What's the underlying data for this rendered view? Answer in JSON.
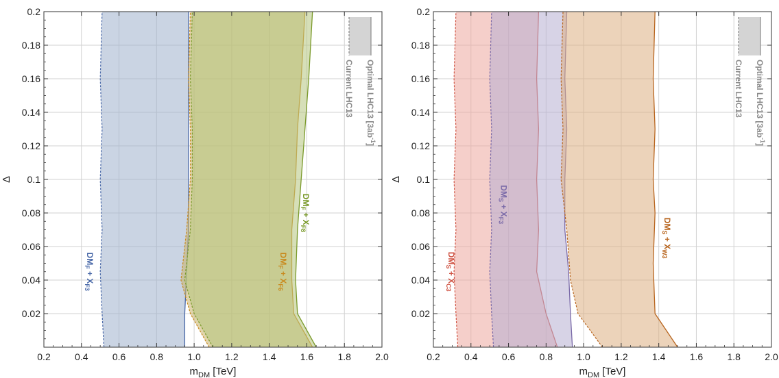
{
  "chart_data": [
    {
      "type": "area",
      "xlabel": "m",
      "xlabel_sub": "DM",
      "xlabel_unit": " [TeV]",
      "ylabel": "Δ",
      "xlim": [
        0.2,
        2.0
      ],
      "ylim": [
        0.0,
        0.2
      ],
      "xticks": [
        0.2,
        0.4,
        0.6,
        0.8,
        1.0,
        1.2,
        1.4,
        1.6,
        1.8,
        2.0
      ],
      "xtick_labels": [
        "0.2",
        "0.4",
        "0.6",
        "0.8",
        "1.0",
        "1.2",
        "1.4",
        "1.6",
        "1.8",
        "2.0"
      ],
      "yticks": [
        0.02,
        0.04,
        0.06,
        0.08,
        0.1,
        0.12,
        0.14,
        0.16,
        0.18,
        0.2
      ],
      "ytick_labels": [
        "0.02",
        "0.04",
        "0.06",
        "0.08",
        "0.1",
        "0.12",
        "0.14",
        "0.16",
        "0.18",
        "0.2"
      ],
      "grid": true,
      "series": [
        {
          "name": "DMF + XF3",
          "label_main": "DM",
          "label_sub1": "F",
          "label_mid": " + X",
          "label_sub2": "F3",
          "label_x": 0.43,
          "label_y": 0.045,
          "color": "#4a69a8",
          "fill": "#9eb0cc",
          "current_reach": [
            [
              0.52,
              0.0
            ],
            [
              0.51,
              0.02
            ],
            [
              0.5,
              0.045
            ],
            [
              0.51,
              0.07
            ],
            [
              0.5,
              0.1
            ],
            [
              0.51,
              0.13
            ],
            [
              0.5,
              0.16
            ],
            [
              0.51,
              0.2
            ]
          ],
          "optimal_reach": [
            [
              0.95,
              0.0
            ],
            [
              0.95,
              0.02
            ],
            [
              0.96,
              0.045
            ],
            [
              0.97,
              0.07
            ],
            [
              0.97,
              0.1
            ],
            [
              0.97,
              0.13
            ],
            [
              0.97,
              0.16
            ],
            [
              0.97,
              0.2
            ]
          ]
        },
        {
          "name": "DMF + XF6",
          "label_main": "DM",
          "label_sub1": "F",
          "label_mid": " + X",
          "label_sub2": "F6",
          "label_x": 1.46,
          "label_y": 0.045,
          "color": "#c98a1e",
          "fill": "#c9b068",
          "current_reach": [
            [
              1.08,
              0.0
            ],
            [
              0.98,
              0.02
            ],
            [
              0.93,
              0.04
            ],
            [
              0.96,
              0.07
            ],
            [
              0.98,
              0.1
            ],
            [
              0.98,
              0.13
            ],
            [
              0.97,
              0.16
            ],
            [
              0.98,
              0.2
            ]
          ],
          "optimal_reach": [
            [
              1.63,
              0.0
            ],
            [
              1.53,
              0.02
            ],
            [
              1.52,
              0.04
            ],
            [
              1.52,
              0.07
            ],
            [
              1.54,
              0.1
            ],
            [
              1.55,
              0.13
            ],
            [
              1.57,
              0.16
            ],
            [
              1.59,
              0.2
            ]
          ]
        },
        {
          "name": "DMF + XF8",
          "label_main": "DM",
          "label_sub1": "F",
          "label_mid": " + X",
          "label_sub2": "F8",
          "label_x": 1.58,
          "label_y": 0.08,
          "color": "#7a9a2a",
          "fill": "#b5c47e",
          "current_reach": [
            [
              1.1,
              0.0
            ],
            [
              1.0,
              0.02
            ],
            [
              0.95,
              0.04
            ],
            [
              0.98,
              0.07
            ],
            [
              0.99,
              0.1
            ],
            [
              0.99,
              0.13
            ],
            [
              0.98,
              0.16
            ],
            [
              0.99,
              0.2
            ]
          ],
          "optimal_reach": [
            [
              1.65,
              0.0
            ],
            [
              1.55,
              0.02
            ],
            [
              1.54,
              0.04
            ],
            [
              1.55,
              0.07
            ],
            [
              1.57,
              0.1
            ],
            [
              1.59,
              0.13
            ],
            [
              1.61,
              0.16
            ],
            [
              1.63,
              0.2
            ]
          ]
        }
      ],
      "legend": {
        "optimal": "Optimal LHC13 [3ab",
        "optimal_sup": "-1",
        "optimal_end": "]",
        "current": "Current LHC13",
        "placement": "top-right",
        "fill": "#d4d4d4",
        "edge": "#8a8a8a"
      }
    },
    {
      "type": "area",
      "xlabel": "m",
      "xlabel_sub": "DM",
      "xlabel_unit": " [TeV]",
      "ylabel": "Δ",
      "xlim": [
        0.2,
        2.0
      ],
      "ylim": [
        0.0,
        0.2
      ],
      "xticks": [
        0.2,
        0.4,
        0.6,
        0.8,
        1.0,
        1.2,
        1.4,
        1.6,
        1.8,
        2.0
      ],
      "xtick_labels": [
        "0.2",
        "0.4",
        "0.6",
        "0.8",
        "1.0",
        "1.2",
        "1.4",
        "1.6",
        "1.8",
        "2.0"
      ],
      "yticks": [
        0.02,
        0.04,
        0.06,
        0.08,
        0.1,
        0.12,
        0.14,
        0.16,
        0.18,
        0.2
      ],
      "ytick_labels": [
        "0.02",
        "0.04",
        "0.06",
        "0.08",
        "0.1",
        "0.12",
        "0.14",
        "0.16",
        "0.18",
        "0.2"
      ],
      "grid": true,
      "series": [
        {
          "name": "DMS + XC3",
          "label_main": "DM",
          "label_sub1": "S",
          "label_mid": " + X",
          "label_sub2": "C3",
          "label_x": 0.28,
          "label_y": 0.045,
          "color": "#d05545",
          "fill": "#eca79e",
          "current_reach": [
            [
              0.33,
              0.0
            ],
            [
              0.32,
              0.02
            ],
            [
              0.31,
              0.045
            ],
            [
              0.32,
              0.07
            ],
            [
              0.31,
              0.1
            ],
            [
              0.32,
              0.13
            ],
            [
              0.31,
              0.16
            ],
            [
              0.32,
              0.2
            ]
          ],
          "optimal_reach": [
            [
              0.86,
              0.0
            ],
            [
              0.8,
              0.02
            ],
            [
              0.75,
              0.045
            ],
            [
              0.76,
              0.07
            ],
            [
              0.75,
              0.1
            ],
            [
              0.76,
              0.13
            ],
            [
              0.75,
              0.16
            ],
            [
              0.76,
              0.2
            ]
          ]
        },
        {
          "name": "DMS + XF3",
          "label_main": "DM",
          "label_sub1": "S",
          "label_mid": " + X",
          "label_sub2": "F3",
          "label_x": 0.56,
          "label_y": 0.085,
          "color": "#7a6aa8",
          "fill": "#b7aed2",
          "current_reach": [
            [
              0.52,
              0.0
            ],
            [
              0.51,
              0.02
            ],
            [
              0.5,
              0.045
            ],
            [
              0.51,
              0.07
            ],
            [
              0.5,
              0.1
            ],
            [
              0.51,
              0.13
            ],
            [
              0.5,
              0.16
            ],
            [
              0.51,
              0.2
            ]
          ],
          "optimal_reach": [
            [
              0.94,
              0.0
            ],
            [
              0.93,
              0.02
            ],
            [
              0.92,
              0.045
            ],
            [
              0.9,
              0.07
            ],
            [
              0.9,
              0.1
            ],
            [
              0.91,
              0.13
            ],
            [
              0.9,
              0.16
            ],
            [
              0.91,
              0.2
            ]
          ]
        },
        {
          "name": "DMS + XW3",
          "label_main": "DM",
          "label_sub1": "S",
          "label_mid": " + X",
          "label_sub2": "W3",
          "label_x": 1.43,
          "label_y": 0.065,
          "color": "#b8651e",
          "fill": "#dcaf82",
          "current_reach": [
            [
              1.1,
              0.0
            ],
            [
              0.97,
              0.02
            ],
            [
              0.93,
              0.04
            ],
            [
              0.91,
              0.07
            ],
            [
              0.88,
              0.1
            ],
            [
              0.89,
              0.13
            ],
            [
              0.88,
              0.16
            ],
            [
              0.89,
              0.2
            ]
          ],
          "optimal_reach": [
            [
              1.5,
              0.0
            ],
            [
              1.38,
              0.02
            ],
            [
              1.37,
              0.05
            ],
            [
              1.38,
              0.08
            ],
            [
              1.37,
              0.1
            ],
            [
              1.38,
              0.13
            ],
            [
              1.37,
              0.16
            ],
            [
              1.38,
              0.2
            ]
          ]
        }
      ],
      "legend": {
        "optimal": "Optimal LHC13 [3ab",
        "optimal_sup": "-1",
        "optimal_end": "]",
        "current": "Current LHC13",
        "placement": "top-right",
        "fill": "#d4d4d4",
        "edge": "#8a8a8a"
      }
    }
  ]
}
